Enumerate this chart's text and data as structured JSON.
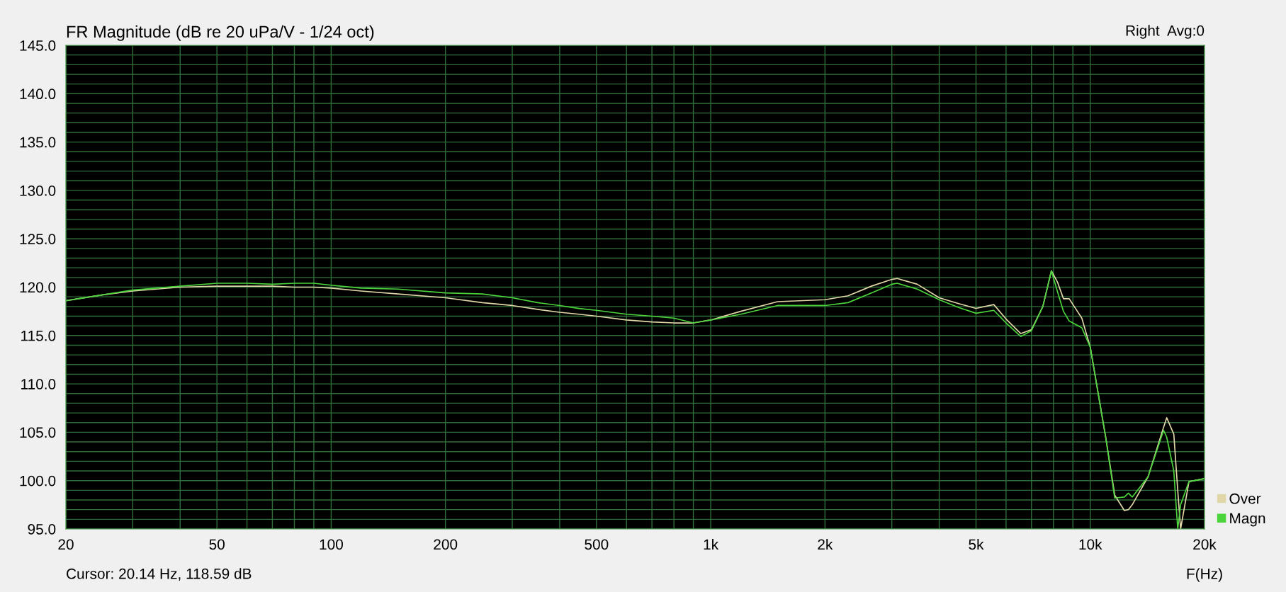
{
  "chart_data": {
    "type": "line",
    "title": "FR Magnitude (dB re 20 uPa/V - 1/24 oct)",
    "xlabel": "F(Hz)",
    "annotations": [
      "Right  Avg:0",
      "Cursor: 20.14 Hz, 118.59 dB"
    ],
    "x": [
      20,
      25,
      30,
      40,
      50,
      60,
      70,
      80,
      90,
      100,
      120,
      150,
      200,
      250,
      300,
      350,
      400,
      450,
      500,
      600,
      700,
      800,
      900,
      1000,
      1200,
      1500,
      2000,
      2300,
      2650,
      3000,
      3100,
      3500,
      4000,
      4500,
      5000,
      5570,
      6000,
      6560,
      7000,
      7500,
      7900,
      8200,
      8500,
      8800,
      9500,
      10000,
      11000,
      11600,
      12300,
      12600,
      12900,
      14200,
      15600,
      15900,
      16600,
      17000,
      17300,
      18200,
      20000
    ],
    "series": [
      {
        "name": "Over",
        "color": "#e0d6a8",
        "values": [
          118.6,
          119.2,
          119.6,
          120.0,
          120.1,
          120.1,
          120.1,
          120.0,
          120.0,
          119.9,
          119.6,
          119.3,
          118.9,
          118.4,
          118.1,
          117.7,
          117.4,
          117.2,
          117.0,
          116.6,
          116.4,
          116.3,
          116.3,
          116.6,
          117.5,
          118.5,
          118.7,
          119.1,
          120.1,
          120.8,
          120.9,
          120.3,
          118.9,
          118.3,
          117.8,
          118.2,
          116.7,
          115.2,
          115.6,
          118.0,
          121.7,
          120.5,
          118.8,
          118.8,
          116.8,
          113.8,
          104.3,
          98.5,
          96.9,
          97.0,
          97.5,
          100.4,
          105.5,
          106.5,
          104.8,
          99.0,
          95.0,
          99.9,
          100.2
        ]
      },
      {
        "name": "Magn",
        "color": "#4cd43c",
        "values": [
          118.6,
          119.2,
          119.7,
          120.1,
          120.4,
          120.4,
          120.3,
          120.4,
          120.4,
          120.2,
          119.9,
          119.8,
          119.4,
          119.3,
          118.9,
          118.4,
          118.1,
          117.8,
          117.6,
          117.2,
          117.0,
          116.8,
          116.3,
          116.6,
          117.2,
          118.1,
          118.1,
          118.4,
          119.4,
          120.3,
          120.4,
          119.8,
          118.7,
          117.9,
          117.3,
          117.6,
          116.3,
          114.9,
          115.5,
          118.0,
          121.7,
          119.5,
          117.5,
          116.5,
          115.8,
          113.8,
          104.3,
          98.2,
          98.3,
          98.7,
          98.3,
          100.4,
          105.2,
          104.5,
          101.0,
          95.0,
          97.5,
          99.9,
          100.2
        ]
      }
    ],
    "log": "x",
    "xlim": [
      20,
      20000
    ],
    "xticks": [
      20,
      {
        "value": 30,
        "label": null
      },
      {
        "value": 40,
        "label": null
      },
      50,
      {
        "value": 60,
        "label": null
      },
      {
        "value": 70,
        "label": null
      },
      {
        "value": 80,
        "label": null
      },
      {
        "value": 90,
        "label": null
      },
      100,
      200,
      {
        "value": 300,
        "label": null
      },
      {
        "value": 400,
        "label": null
      },
      500,
      {
        "value": 600,
        "label": null
      },
      {
        "value": 700,
        "label": null
      },
      {
        "value": 800,
        "label": null
      },
      {
        "value": 900,
        "label": null
      },
      {
        "value": 1000,
        "label": "1k"
      },
      {
        "value": 2000,
        "label": "2k"
      },
      {
        "value": 3000,
        "label": null
      },
      {
        "value": 4000,
        "label": null
      },
      {
        "value": 5000,
        "label": "5k"
      },
      {
        "value": 6000,
        "label": null
      },
      {
        "value": 7000,
        "label": null
      },
      {
        "value": 8000,
        "label": null
      },
      {
        "value": 9000,
        "label": null
      },
      {
        "value": 10000,
        "label": "10k"
      },
      {
        "value": 20000,
        "label": "20k"
      }
    ],
    "ylim": [
      95,
      145
    ],
    "yticks": [
      {
        "value": 95,
        "label": "95.0"
      },
      {
        "value": 96,
        "label": null
      },
      {
        "value": 97,
        "label": null
      },
      {
        "value": 98,
        "label": null
      },
      {
        "value": 99,
        "label": null
      },
      {
        "value": 100,
        "label": "100.0"
      },
      {
        "value": 101,
        "label": null
      },
      {
        "value": 102,
        "label": null
      },
      {
        "value": 103,
        "label": null
      },
      {
        "value": 104,
        "label": null
      },
      {
        "value": 105,
        "label": "105.0"
      },
      {
        "value": 106,
        "label": null
      },
      {
        "value": 107,
        "label": null
      },
      {
        "value": 108,
        "label": null
      },
      {
        "value": 109,
        "label": null
      },
      {
        "value": 110,
        "label": "110.0"
      },
      {
        "value": 111,
        "label": null
      },
      {
        "value": 112,
        "label": null
      },
      {
        "value": 113,
        "label": null
      },
      {
        "value": 114,
        "label": null
      },
      {
        "value": 115,
        "label": "115.0"
      },
      {
        "value": 116,
        "label": null
      },
      {
        "value": 117,
        "label": null
      },
      {
        "value": 118,
        "label": null
      },
      {
        "value": 119,
        "label": null
      },
      {
        "value": 120,
        "label": "120.0"
      },
      {
        "value": 121,
        "label": null
      },
      {
        "value": 122,
        "label": null
      },
      {
        "value": 123,
        "label": null
      },
      {
        "value": 124,
        "label": null
      },
      {
        "value": 125,
        "label": "125.0"
      },
      {
        "value": 126,
        "label": null
      },
      {
        "value": 127,
        "label": null
      },
      {
        "value": 128,
        "label": null
      },
      {
        "value": 129,
        "label": null
      },
      {
        "value": 130,
        "label": "130.0"
      },
      {
        "value": 131,
        "label": null
      },
      {
        "value": 132,
        "label": null
      },
      {
        "value": 133,
        "label": null
      },
      {
        "value": 134,
        "label": null
      },
      {
        "value": 135,
        "label": "135.0"
      },
      {
        "value": 136,
        "label": null
      },
      {
        "value": 137,
        "label": null
      },
      {
        "value": 138,
        "label": null
      },
      {
        "value": 139,
        "label": null
      },
      {
        "value": 140,
        "label": "140.0"
      },
      {
        "value": 141,
        "label": null
      },
      {
        "value": 142,
        "label": null
      },
      {
        "value": 143,
        "label": null
      },
      {
        "value": 144,
        "label": null
      },
      {
        "value": 145,
        "label": "145.0"
      }
    ],
    "grid": true,
    "legend": "bottom right",
    "marker": "none",
    "line_style": "solid"
  }
}
